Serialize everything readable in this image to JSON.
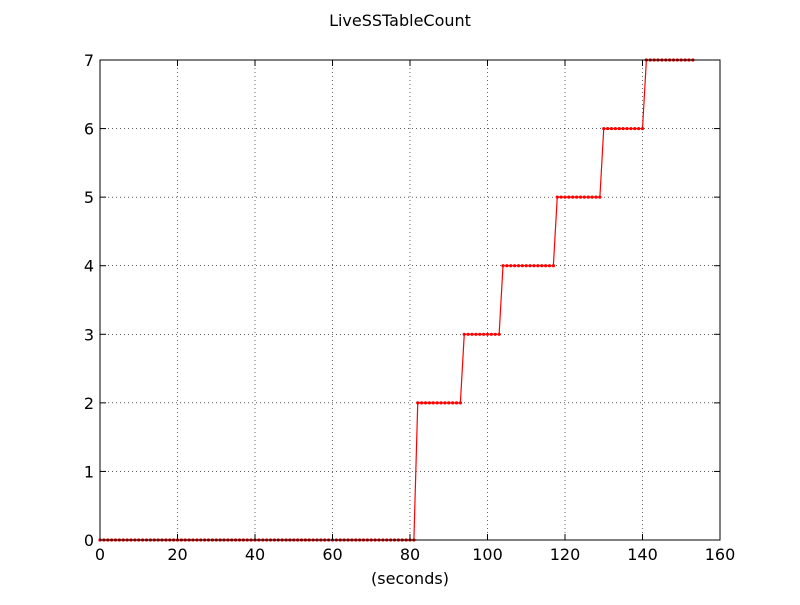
{
  "chart_data": {
    "type": "line",
    "title": "LiveSSTableCount",
    "xlabel": "(seconds)",
    "ylabel": "",
    "xlim": [
      0,
      160
    ],
    "ylim": [
      0,
      7
    ],
    "xticks": [
      "0",
      "20",
      "40",
      "60",
      "80",
      "100",
      "120",
      "140",
      "160"
    ],
    "yticks": [
      "0",
      "1",
      "2",
      "3",
      "4",
      "5",
      "6",
      "7"
    ],
    "grid": true,
    "line_color": "#ff0000",
    "series": [
      {
        "sample_interval": 1,
        "x_start": 0,
        "values": [
          0,
          0,
          0,
          0,
          0,
          0,
          0,
          0,
          0,
          0,
          0,
          0,
          0,
          0,
          0,
          0,
          0,
          0,
          0,
          0,
          0,
          0,
          0,
          0,
          0,
          0,
          0,
          0,
          0,
          0,
          0,
          0,
          0,
          0,
          0,
          0,
          0,
          0,
          0,
          0,
          0,
          0,
          0,
          0,
          0,
          0,
          0,
          0,
          0,
          0,
          0,
          0,
          0,
          0,
          0,
          0,
          0,
          0,
          0,
          0,
          0,
          0,
          0,
          0,
          0,
          0,
          0,
          0,
          0,
          0,
          0,
          0,
          0,
          0,
          0,
          0,
          0,
          0,
          0,
          0,
          0,
          0,
          2,
          2,
          2,
          2,
          2,
          2,
          2,
          2,
          2,
          2,
          2,
          2,
          3,
          3,
          3,
          3,
          3,
          3,
          3,
          3,
          3,
          3,
          4,
          4,
          4,
          4,
          4,
          4,
          4,
          4,
          4,
          4,
          4,
          4,
          4,
          4,
          5,
          5,
          5,
          5,
          5,
          5,
          5,
          5,
          5,
          5,
          5,
          5,
          6,
          6,
          6,
          6,
          6,
          6,
          6,
          6,
          6,
          6,
          6,
          7,
          7,
          7,
          7,
          7,
          7,
          7,
          7,
          7,
          7,
          7,
          7,
          7
        ]
      }
    ]
  }
}
